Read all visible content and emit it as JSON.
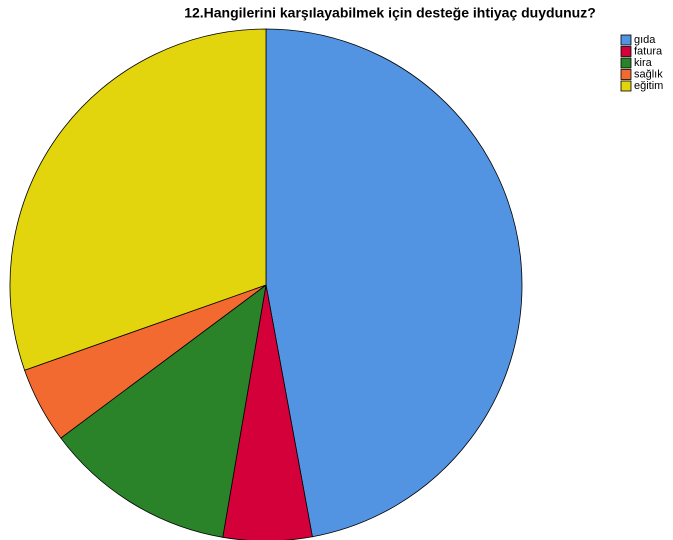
{
  "chart_data": {
    "type": "pie",
    "title": "12.Hangilerini karşılayabilmek için desteğe ihtiyaç duydunuz?",
    "categories": [
      "gıda",
      "fatura",
      "kira",
      "sağlık",
      "eğitim"
    ],
    "values": [
      47.1,
      5.6,
      12.1,
      4.8,
      30.4
    ],
    "colors": [
      "#5294e2",
      "#d4003a",
      "#2a8229",
      "#f26a30",
      "#e3d50d"
    ],
    "legend": "top-right"
  }
}
